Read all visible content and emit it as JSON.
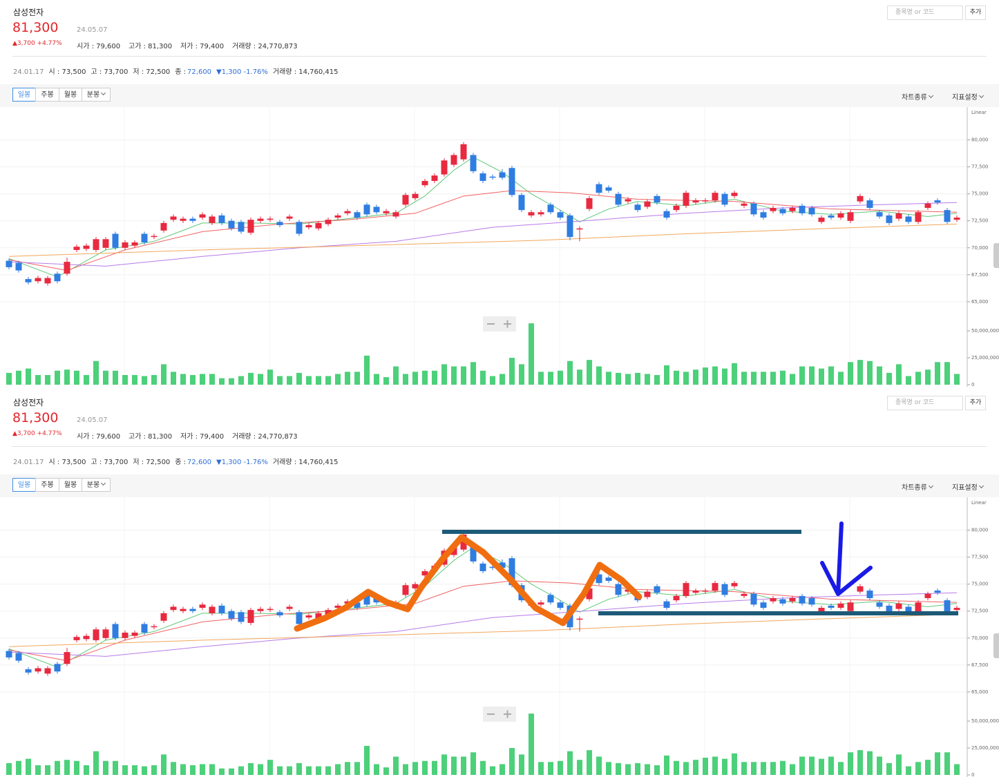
{
  "header": {
    "name": "삼성전자",
    "price": "81,300",
    "date": "24.05.07",
    "change": "▲3,700 +4.77%",
    "fields": [
      "시가 : 79,600",
      "고가 : 81,300",
      "저가 : 79,400",
      "거래량 : 24,770,873"
    ],
    "search_placeholder": "종목명 or 코드",
    "add_button": "추가"
  },
  "info": {
    "date": "24.01.17",
    "items": [
      "시 : 73,500",
      "고 : 73,700",
      "저 : 72,500"
    ],
    "close_label": "종 :",
    "close": "72,600",
    "close_change": "▼1,300 -1.76%",
    "volume": "거래량 : 14,760,415"
  },
  "toolbar": {
    "periods": [
      "일봉",
      "주봉",
      "월봉",
      "분봉"
    ],
    "selected": 0,
    "options": [
      "차트종류",
      "지표설정"
    ]
  },
  "chart_data": {
    "type": "candlestick",
    "scale_label": "Linear",
    "up_color": "#e8293f",
    "down_color": "#2f7de1",
    "open": [
      68800,
      68600,
      67100,
      66900,
      66700,
      67600,
      67600,
      69800,
      69900,
      69800,
      70000,
      71300,
      70000,
      70200,
      71300,
      71000,
      71600,
      72600,
      72500,
      72700,
      72800,
      72300,
      73000,
      72500,
      72400,
      71400,
      72500,
      72600,
      72400,
      72700,
      72400,
      71900,
      71800,
      72200,
      72800,
      73200,
      73300,
      74000,
      73800,
      73200,
      72900,
      74000,
      74600,
      75800,
      76200,
      76800,
      77700,
      78200,
      78600,
      76900,
      76600,
      77000,
      77400,
      74900,
      73000,
      73100,
      74000,
      73300,
      73000,
      71700,
      73600,
      75900,
      75600,
      75000,
      74300,
      74000,
      73800,
      74800,
      73400,
      73500,
      73900,
      74200,
      74300,
      74400,
      75000,
      74800,
      73900,
      74100,
      73300,
      73400,
      73600,
      73400,
      73900,
      73700,
      72400,
      73000,
      72800,
      72500,
      74300,
      74400,
      73300,
      73000,
      72700,
      72900,
      72400,
      73700,
      74400,
      73500,
      72600
    ],
    "high": [
      69000,
      68800,
      67300,
      67400,
      67400,
      67800,
      69100,
      70300,
      70400,
      71000,
      71000,
      71500,
      70700,
      70700,
      71500,
      71300,
      72500,
      73100,
      72900,
      72900,
      73300,
      73100,
      73200,
      72700,
      72600,
      72800,
      72900,
      72900,
      72600,
      73100,
      72600,
      72300,
      72500,
      72800,
      73200,
      73600,
      73500,
      74200,
      74000,
      73600,
      73500,
      75100,
      75200,
      76400,
      76900,
      78300,
      78800,
      79800,
      78800,
      77100,
      76800,
      77300,
      77600,
      75100,
      73500,
      73500,
      74200,
      73500,
      73200,
      72000,
      74800,
      76100,
      75800,
      75200,
      74700,
      74200,
      74500,
      75000,
      73600,
      74100,
      75300,
      74600,
      74600,
      75300,
      75200,
      75300,
      74300,
      74300,
      73500,
      73900,
      73800,
      73900,
      74100,
      73900,
      73000,
      73200,
      73400,
      73500,
      75000,
      74600,
      73500,
      73200,
      73400,
      73100,
      73500,
      74300,
      74600,
      73700,
      73000
    ],
    "low": [
      68000,
      67700,
      66600,
      66700,
      66500,
      66700,
      67400,
      69600,
      69700,
      69600,
      69800,
      69800,
      69800,
      70000,
      70300,
      70800,
      71400,
      72400,
      72300,
      72300,
      72600,
      72100,
      72100,
      71600,
      71300,
      71200,
      72300,
      72400,
      71900,
      72500,
      71100,
      71700,
      71600,
      72000,
      72600,
      73000,
      72600,
      72900,
      73100,
      73000,
      72700,
      73800,
      74400,
      75600,
      76000,
      76600,
      77500,
      78000,
      76900,
      76000,
      76300,
      76300,
      74700,
      73300,
      72800,
      72900,
      73100,
      72600,
      70700,
      70600,
      73400,
      74900,
      75100,
      73800,
      74100,
      73300,
      73600,
      74000,
      72600,
      73300,
      73700,
      74000,
      74100,
      74200,
      73800,
      74600,
      73700,
      72900,
      72600,
      73200,
      73000,
      73200,
      73000,
      72900,
      72200,
      72600,
      72600,
      72300,
      74100,
      73500,
      72700,
      72100,
      72500,
      72200,
      72200,
      73500,
      74000,
      72200,
      72400
    ],
    "close": [
      68200,
      67900,
      66800,
      67200,
      67200,
      66900,
      68700,
      70100,
      70200,
      70800,
      70800,
      70000,
      70500,
      70500,
      70500,
      71100,
      72300,
      72900,
      72700,
      72500,
      73100,
      72900,
      72300,
      71800,
      71500,
      72600,
      72700,
      72700,
      72100,
      72900,
      71300,
      72100,
      72300,
      72600,
      73000,
      73400,
      72800,
      73100,
      73300,
      73400,
      73300,
      74900,
      75000,
      76200,
      76700,
      78100,
      78600,
      79600,
      77100,
      76200,
      76500,
      76500,
      74900,
      73500,
      73300,
      73300,
      73300,
      72800,
      71000,
      71800,
      74600,
      75100,
      75300,
      74000,
      74500,
      73500,
      74300,
      74200,
      72800,
      73900,
      75100,
      74400,
      74400,
      75100,
      74000,
      75100,
      74100,
      73100,
      72800,
      73700,
      73200,
      73700,
      73200,
      73100,
      72800,
      72800,
      73200,
      73300,
      74800,
      73700,
      72900,
      72300,
      73200,
      72400,
      73300,
      74100,
      74200,
      72400,
      72800
    ],
    "ylim": [
      64800,
      82600
    ],
    "yticks": [
      {
        "value": 65000,
        "label": "65,000"
      },
      {
        "value": 67500,
        "label": "67,500"
      },
      {
        "value": 70000,
        "label": "70,000"
      },
      {
        "value": 72500,
        "label": "72,500"
      },
      {
        "value": 75000,
        "label": "75,000"
      },
      {
        "value": 77500,
        "label": "77,500"
      },
      {
        "value": 80000,
        "label": "80,000"
      }
    ],
    "series": [
      {
        "color": "#5cc878",
        "x": [
          0,
          5,
          10,
          15,
          20,
          25,
          30,
          35,
          40,
          43,
          46,
          48,
          51,
          54,
          57,
          59,
          62,
          65,
          70,
          75,
          80,
          85,
          90,
          95,
          98
        ],
        "values": [
          69000,
          67300,
          69800,
          70600,
          72300,
          72300,
          72200,
          72700,
          73200,
          74800,
          77200,
          78400,
          77000,
          75000,
          73500,
          72400,
          73600,
          74300,
          73900,
          74500,
          73400,
          73100,
          73400,
          72900,
          73200
        ]
      },
      {
        "color": "#f06060",
        "x": [
          0,
          6,
          12,
          20,
          28,
          35,
          42,
          47,
          52,
          58,
          65,
          75,
          85,
          98
        ],
        "values": [
          68900,
          67900,
          69800,
          71500,
          72200,
          72600,
          73200,
          74800,
          75300,
          75100,
          74500,
          74300,
          73600,
          73300
        ]
      },
      {
        "color": "#b67ae8",
        "x": [
          0,
          10,
          20,
          30,
          40,
          50,
          58,
          70,
          80,
          90,
          98
        ],
        "values": [
          68700,
          68300,
          69200,
          70000,
          70600,
          71900,
          72400,
          73200,
          73700,
          74000,
          74200
        ]
      },
      {
        "color": "#f2a65a",
        "x": [
          0,
          20,
          40,
          55,
          70,
          85,
          98
        ],
        "values": [
          69200,
          69800,
          70300,
          70700,
          71300,
          71800,
          72200
        ]
      }
    ],
    "volume": {
      "color": "#4cd07a",
      "values": [
        11000000,
        13000000,
        15000000,
        9000000,
        9000000,
        13000000,
        14000000,
        13000000,
        9000000,
        22000000,
        13000000,
        13000000,
        9000000,
        9000000,
        8000000,
        9000000,
        19000000,
        12000000,
        10000000,
        9000000,
        10000000,
        10000000,
        6000000,
        6000000,
        8000000,
        11000000,
        10000000,
        14000000,
        8000000,
        8000000,
        11000000,
        8000000,
        8000000,
        8000000,
        10000000,
        12000000,
        12000000,
        27000000,
        10000000,
        7000000,
        17000000,
        10000000,
        12000000,
        13000000,
        13000000,
        19000000,
        17000000,
        17000000,
        21000000,
        13000000,
        8000000,
        10000000,
        25000000,
        19000000,
        57000000,
        12000000,
        12000000,
        13000000,
        22000000,
        14000000,
        23000000,
        17000000,
        12000000,
        11000000,
        10000000,
        11000000,
        10000000,
        9000000,
        18000000,
        13000000,
        12000000,
        14000000,
        16000000,
        17000000,
        15000000,
        20000000,
        12000000,
        12000000,
        12000000,
        12000000,
        13000000,
        10000000,
        17000000,
        17000000,
        15000000,
        17000000,
        12000000,
        21000000,
        23000000,
        22000000,
        17000000,
        11000000,
        19000000,
        8000000,
        12000000,
        14000000,
        21000000,
        21000000,
        10000000
      ],
      "ylim": [
        0,
        63500000
      ],
      "yticks": [
        0,
        {
          "value": 25000000,
          "label": "25,000,000"
        },
        {
          "value": 50000000,
          "label": "50,000,000"
        }
      ]
    }
  }
}
